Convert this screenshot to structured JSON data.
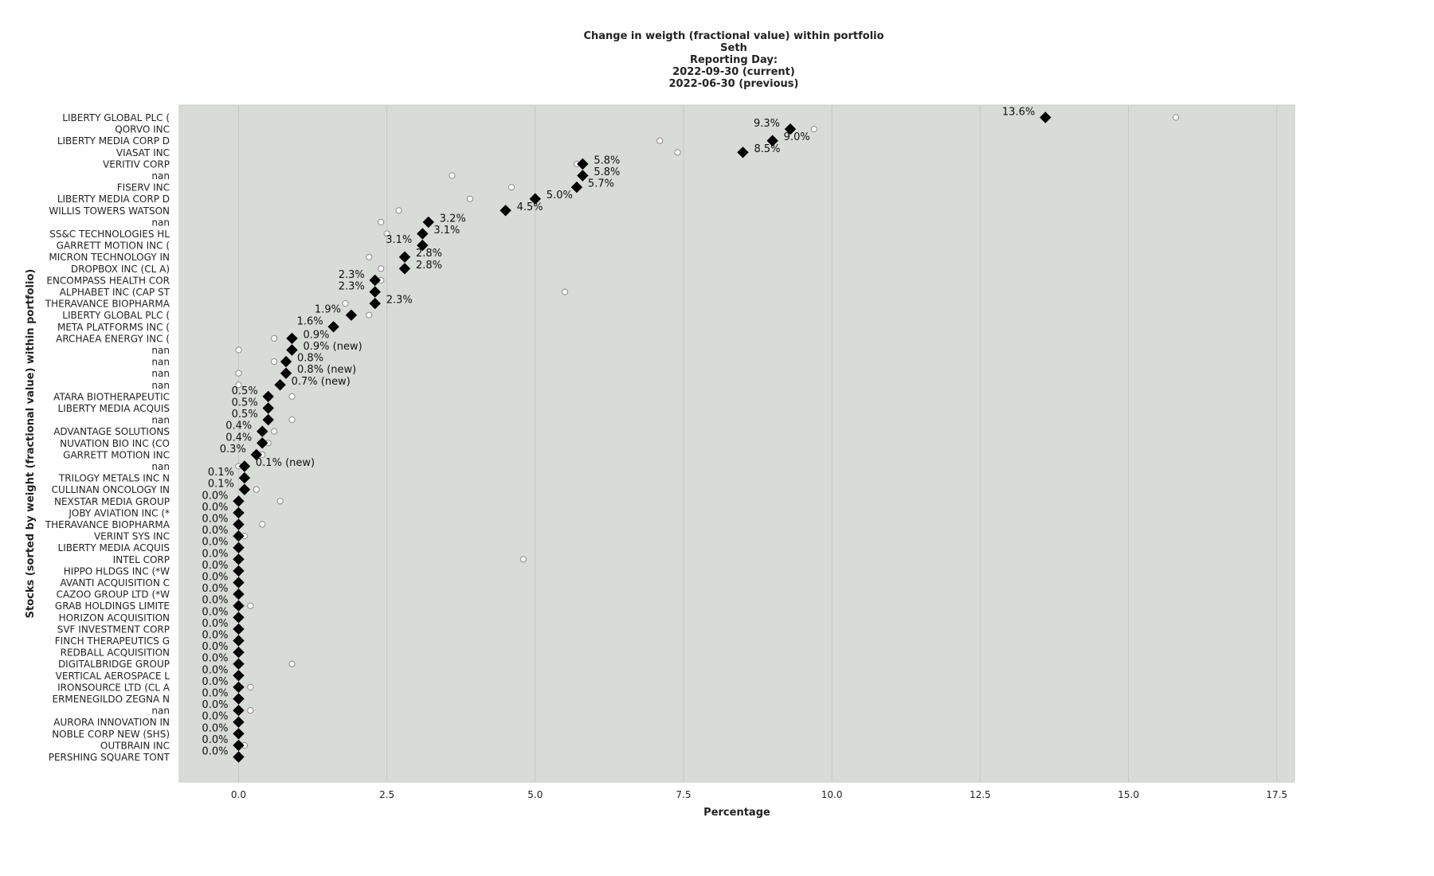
{
  "chart_data": {
    "type": "scatter",
    "title": [
      "Change in weigth (fractional value) within portfolio",
      "Seth",
      "Reporting Day:",
      "2022-09-30 (current)",
      "2022-06-30 (previous)"
    ],
    "xlabel": "Percentage",
    "ylabel": "Stocks (sorted by weight (fractional value) within portfolio)",
    "xlim": [
      -1.0,
      17.8
    ],
    "xticks": [
      0.0,
      2.5,
      5.0,
      7.5,
      10.0,
      12.5,
      15.0,
      17.5
    ],
    "xtick_labels": [
      "0.0",
      "2.5",
      "5.0",
      "7.5",
      "10.0",
      "12.5",
      "15.0",
      "17.5"
    ],
    "grid": "vertical",
    "colors": {
      "plot_bg": "#d8dcd6",
      "current_marker": "#000000",
      "previous_marker": "#ffffff",
      "grid": "#c4c9c2"
    },
    "series": [
      {
        "name": "current",
        "marker": "diamond"
      },
      {
        "name": "previous",
        "marker": "circle"
      }
    ],
    "stocks": [
      {
        "name": "LIBERTY GLOBAL PLC (",
        "current": 13.6,
        "previous": 15.8,
        "label": "13.6%",
        "side": "left"
      },
      {
        "name": "QORVO INC",
        "current": 9.3,
        "previous": 9.7,
        "label": "9.3%",
        "side": "left"
      },
      {
        "name": "LIBERTY MEDIA CORP D",
        "current": 9.0,
        "previous": 7.1,
        "label": "9.0%",
        "side": "right"
      },
      {
        "name": "VIASAT INC",
        "current": 8.5,
        "previous": 7.4,
        "label": "8.5%",
        "side": "right"
      },
      {
        "name": "VERITIV CORP",
        "current": 5.8,
        "previous": 5.7,
        "label": "5.8%",
        "side": "right"
      },
      {
        "name": "nan",
        "current": 5.8,
        "previous": 3.6,
        "label": "5.8%",
        "side": "right"
      },
      {
        "name": "FISERV INC",
        "current": 5.7,
        "previous": 4.6,
        "label": "5.7%",
        "side": "right"
      },
      {
        "name": "LIBERTY MEDIA CORP D",
        "current": 5.0,
        "previous": 3.9,
        "label": "5.0%",
        "side": "right"
      },
      {
        "name": "WILLIS TOWERS WATSON",
        "current": 4.5,
        "previous": 2.7,
        "label": "4.5%",
        "side": "right"
      },
      {
        "name": "nan",
        "current": 3.2,
        "previous": 2.4,
        "label": "3.2%",
        "side": "right"
      },
      {
        "name": "SS&C TECHNOLOGIES HL",
        "current": 3.1,
        "previous": 2.5,
        "label": "3.1%",
        "side": "right"
      },
      {
        "name": "GARRETT MOTION INC (",
        "current": 3.1,
        "previous": 3.1,
        "label": "3.1%",
        "side": "left"
      },
      {
        "name": "MICRON TECHNOLOGY IN",
        "current": 2.8,
        "previous": 2.2,
        "label": "2.8%",
        "side": "right"
      },
      {
        "name": "DROPBOX INC (CL A)",
        "current": 2.8,
        "previous": 2.4,
        "label": "2.8%",
        "side": "right"
      },
      {
        "name": "ENCOMPASS HEALTH COR",
        "current": 2.3,
        "previous": 2.4,
        "label": "2.3%",
        "side": "left"
      },
      {
        "name": "ALPHABET INC (CAP ST",
        "current": 2.3,
        "previous": 5.5,
        "label": "2.3%",
        "side": "left"
      },
      {
        "name": "THERAVANCE BIOPHARMA",
        "current": 2.3,
        "previous": 1.8,
        "label": "2.3%",
        "side": "right"
      },
      {
        "name": "LIBERTY GLOBAL PLC (",
        "current": 1.9,
        "previous": 2.2,
        "label": "1.9%",
        "side": "left"
      },
      {
        "name": "META PLATFORMS INC (",
        "current": 1.6,
        "previous": 1.6,
        "label": "1.6%",
        "side": "left"
      },
      {
        "name": "ARCHAEA ENERGY INC (",
        "current": 0.9,
        "previous": 0.6,
        "label": "0.9%",
        "side": "right"
      },
      {
        "name": "nan",
        "current": 0.9,
        "previous": 0.0,
        "label": "0.9% (new)",
        "side": "right"
      },
      {
        "name": "nan",
        "current": 0.8,
        "previous": 0.6,
        "label": "0.8%",
        "side": "right"
      },
      {
        "name": "nan",
        "current": 0.8,
        "previous": 0.0,
        "label": "0.8% (new)",
        "side": "right"
      },
      {
        "name": "nan",
        "current": 0.7,
        "previous": 0.0,
        "label": "0.7% (new)",
        "side": "right"
      },
      {
        "name": "ATARA BIOTHERAPEUTIC",
        "current": 0.5,
        "previous": 0.9,
        "label": "0.5%",
        "side": "left"
      },
      {
        "name": "LIBERTY MEDIA ACQUIS",
        "current": 0.5,
        "previous": 0.5,
        "label": "0.5%",
        "side": "left"
      },
      {
        "name": "nan",
        "current": 0.5,
        "previous": 0.9,
        "label": "0.5%",
        "side": "left"
      },
      {
        "name": "ADVANTAGE SOLUTIONS",
        "current": 0.4,
        "previous": 0.6,
        "label": "0.4%",
        "side": "left"
      },
      {
        "name": "NUVATION BIO INC (CO",
        "current": 0.4,
        "previous": 0.5,
        "label": "0.4%",
        "side": "left"
      },
      {
        "name": "GARRETT MOTION INC",
        "current": 0.3,
        "previous": 0.4,
        "label": "0.3%",
        "side": "left"
      },
      {
        "name": "nan",
        "current": 0.1,
        "previous": 0.0,
        "label": "0.1% (new)",
        "side": "right"
      },
      {
        "name": "TRILOGY METALS INC N",
        "current": 0.1,
        "previous": 0.1,
        "label": "0.1%",
        "side": "left"
      },
      {
        "name": "CULLINAN ONCOLOGY IN",
        "current": 0.1,
        "previous": 0.3,
        "label": "0.1%",
        "side": "left"
      },
      {
        "name": "NEXSTAR MEDIA GROUP",
        "current": 0.0,
        "previous": 0.7,
        "label": "0.0%",
        "side": "left"
      },
      {
        "name": "JOBY AVIATION INC (*",
        "current": 0.0,
        "previous": 0.0,
        "label": "0.0%",
        "side": "left"
      },
      {
        "name": "THERAVANCE BIOPHARMA",
        "current": 0.0,
        "previous": 0.4,
        "label": "0.0%",
        "side": "left"
      },
      {
        "name": "VERINT SYS INC",
        "current": 0.0,
        "previous": 0.1,
        "label": "0.0%",
        "side": "left"
      },
      {
        "name": "LIBERTY MEDIA ACQUIS",
        "current": 0.0,
        "previous": 0.0,
        "label": "0.0%",
        "side": "left"
      },
      {
        "name": "INTEL CORP",
        "current": 0.0,
        "previous": 4.8,
        "label": "0.0%",
        "side": "left"
      },
      {
        "name": "HIPPO HLDGS INC (*W",
        "current": 0.0,
        "previous": 0.0,
        "label": "0.0%",
        "side": "left"
      },
      {
        "name": "AVANTI ACQUISITION C",
        "current": 0.0,
        "previous": 0.0,
        "label": "0.0%",
        "side": "left"
      },
      {
        "name": "CAZOO GROUP LTD (*W",
        "current": 0.0,
        "previous": 0.0,
        "label": "0.0%",
        "side": "left"
      },
      {
        "name": "GRAB HOLDINGS LIMITE",
        "current": 0.0,
        "previous": 0.2,
        "label": "0.0%",
        "side": "left"
      },
      {
        "name": "HORIZON ACQUISITION",
        "current": 0.0,
        "previous": 0.0,
        "label": "0.0%",
        "side": "left"
      },
      {
        "name": "SVF INVESTMENT CORP",
        "current": 0.0,
        "previous": 0.0,
        "label": "0.0%",
        "side": "left"
      },
      {
        "name": "FINCH THERAPEUTICS G",
        "current": 0.0,
        "previous": 0.0,
        "label": "0.0%",
        "side": "left"
      },
      {
        "name": "REDBALL ACQUISITION",
        "current": 0.0,
        "previous": 0.0,
        "label": "0.0%",
        "side": "left"
      },
      {
        "name": "DIGITALBRIDGE GROUP",
        "current": 0.0,
        "previous": 0.9,
        "label": "0.0%",
        "side": "left"
      },
      {
        "name": "VERTICAL AEROSPACE L",
        "current": 0.0,
        "previous": 0.0,
        "label": "0.0%",
        "side": "left"
      },
      {
        "name": "IRONSOURCE LTD (CL A",
        "current": 0.0,
        "previous": 0.2,
        "label": "0.0%",
        "side": "left"
      },
      {
        "name": "ERMENEGILDO ZEGNA N",
        "current": 0.0,
        "previous": 0.0,
        "label": "0.0%",
        "side": "left"
      },
      {
        "name": "nan",
        "current": 0.0,
        "previous": 0.2,
        "label": "0.0%",
        "side": "left"
      },
      {
        "name": "AURORA INNOVATION IN",
        "current": 0.0,
        "previous": 0.0,
        "label": "0.0%",
        "side": "left"
      },
      {
        "name": "NOBLE CORP NEW (SHS)",
        "current": 0.0,
        "previous": 0.0,
        "label": "0.0%",
        "side": "left"
      },
      {
        "name": "OUTBRAIN INC",
        "current": 0.0,
        "previous": 0.1,
        "label": "0.0%",
        "side": "left"
      },
      {
        "name": "PERSHING SQUARE TONT",
        "current": 0.0,
        "previous": 0.0,
        "label": "0.0%",
        "side": "left"
      }
    ]
  }
}
